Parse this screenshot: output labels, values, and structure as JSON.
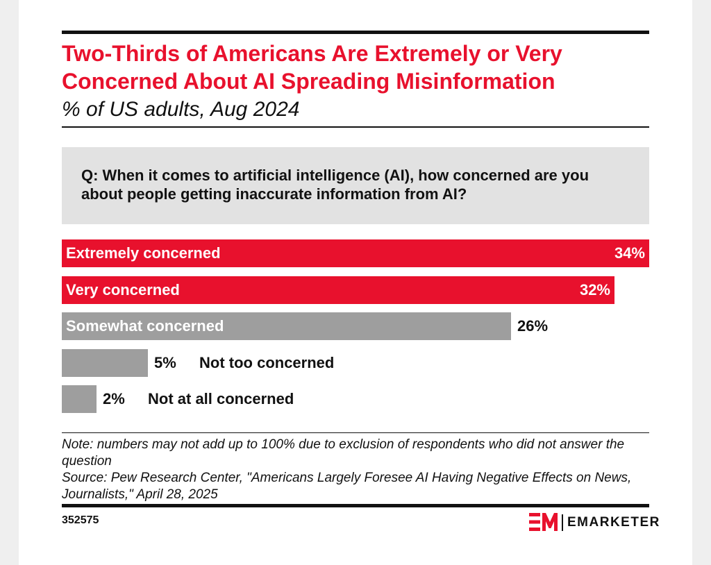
{
  "header": {
    "title": "Two-Thirds of Americans Are Extremely or Very Concerned About AI Spreading Misinformation",
    "subtitle": "% of US adults, Aug 2024"
  },
  "question": "Q: When it comes to artificial intelligence (AI), how concerned are you about people getting inaccurate information from AI?",
  "chart_data": {
    "type": "bar",
    "orientation": "horizontal",
    "title": "Two-Thirds of Americans Are Extremely or Very Concerned About AI Spreading Misinformation",
    "subtitle": "% of US adults, Aug 2024",
    "categories": [
      "Extremely concerned",
      "Very concerned",
      "Somewhat concerned",
      "Not too concerned",
      "Not at all concerned"
    ],
    "values": [
      34,
      32,
      26,
      5,
      2
    ],
    "value_labels": [
      "34%",
      "32%",
      "26%",
      "5%",
      "2%"
    ],
    "colors": [
      "#e8112d",
      "#e8112d",
      "#9e9e9e",
      "#9e9e9e",
      "#9e9e9e"
    ],
    "xlim": [
      0,
      34
    ],
    "grid": false,
    "legend": "none"
  },
  "notes": {
    "note": "Note: numbers may not add up to 100% due to exclusion of respondents who did not answer the question",
    "source": "Source: Pew Research Center, \"Americans Largely Foresee AI Having Negative Effects on News, Journalists,\" April 28, 2025"
  },
  "footer": {
    "chart_id": "352575",
    "brand_name": "EMARKETER",
    "brand_color": "#e8112d",
    "logo_icon": "em-logo-icon"
  }
}
